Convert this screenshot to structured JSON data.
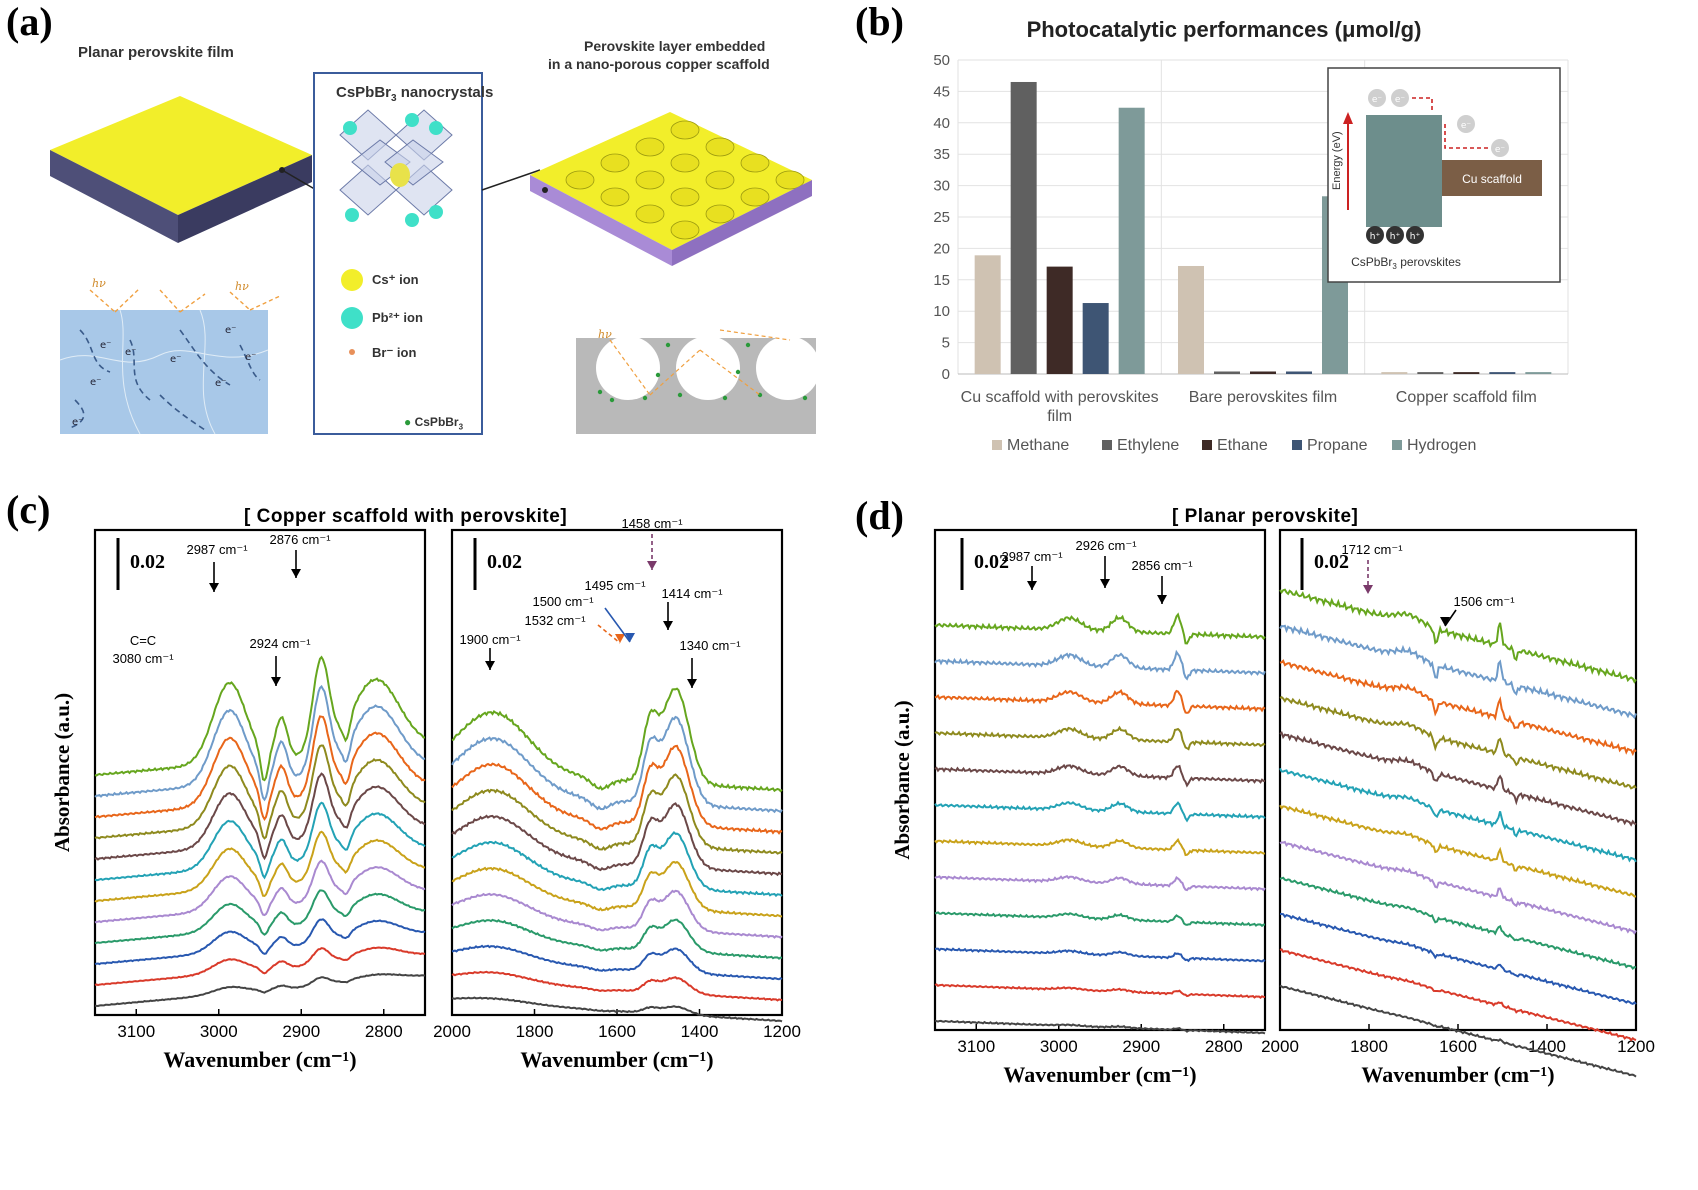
{
  "panels": {
    "a": {
      "letter": "(a)",
      "planar_title": "Planar perovskite film",
      "embedded_title_line1": "Perovskite layer embedded",
      "embedded_title_line2": "in a nano-porous copper scaffold",
      "nano_title": "CsPbBr",
      "nano_title_sub": "3",
      "nano_title_suffix": " nanocrystals",
      "legend_cs": "Cs⁺ ion",
      "legend_pb": "Pb²⁺ ion",
      "legend_br": "Br⁻ ion",
      "legend_cspbbr3": "CsPbBr",
      "legend_cspbbr3_sub": "3",
      "hv": "hν",
      "electron": "e⁻",
      "colors": {
        "yellow": "#f2ee2a",
        "film_side": "#4e4f78",
        "blue_bg": "#a8c8e8",
        "cyan": "#3fe0c8",
        "purple": "#a98bd6",
        "grey": "#b9b9b9"
      }
    },
    "b": {
      "letter": "(b)",
      "inset_energy": "Energy (eV)",
      "inset_cu": "Cu scaffold",
      "inset_perovskite_prefix": "CsPbBr",
      "inset_perovskite_sub": "3",
      "inset_perovskite_suffix": " perovskites",
      "inset_e": "e⁻",
      "inset_h": "h⁺"
    },
    "c": {
      "letter": "(c)",
      "title": "[ Copper scaffold with perovskite]"
    },
    "d": {
      "letter": "(d)",
      "title": "[ Planar perovskite]"
    }
  },
  "chart_data": [
    {
      "type": "bar",
      "title": "Photocatalytic performances (μmol/g)",
      "categories": [
        "Cu scaffold with perovskites film",
        "Bare perovskites film",
        "Copper scaffold film"
      ],
      "category_lines": [
        [
          "Cu scaffold with perovskites",
          "film"
        ],
        [
          "Bare perovskites film"
        ],
        [
          "Copper scaffold film"
        ]
      ],
      "series": [
        {
          "name": "Methane",
          "color": "#cfc2b2",
          "values": [
            18.9,
            17.2,
            0.3
          ]
        },
        {
          "name": "Ethylene",
          "color": "#606060",
          "values": [
            46.5,
            0.4,
            0.3
          ]
        },
        {
          "name": "Ethane",
          "color": "#3e2a26",
          "values": [
            17.1,
            0.4,
            0.3
          ]
        },
        {
          "name": "Propane",
          "color": "#3e5574",
          "values": [
            11.3,
            0.4,
            0.3
          ]
        },
        {
          "name": "Hydrogen",
          "color": "#7e9a99",
          "values": [
            42.4,
            28.3,
            0.3
          ]
        }
      ],
      "ylim": [
        0,
        50
      ],
      "yticks": [
        "0",
        "5",
        "10",
        "15",
        "20",
        "25",
        "30",
        "35",
        "40",
        "45",
        "50"
      ],
      "grid": true,
      "legend": "bottom"
    },
    {
      "type": "line",
      "panel": "c-left",
      "xlabel": "Wavenumber (cm⁻¹)",
      "ylabel": "Absorbance (a.u.)",
      "xlim": [
        3150,
        2750
      ],
      "xticks": [
        "3100",
        "3000",
        "2900",
        "2800"
      ],
      "scale_bar": "0.02",
      "annotations": [
        "C=C",
        "3080 cm⁻¹",
        "2987 cm⁻¹",
        "2924 cm⁻¹",
        "2876 cm⁻¹"
      ],
      "series_count": 12
    },
    {
      "type": "line",
      "panel": "c-right",
      "xlabel": "Wavenumber (cm⁻¹)",
      "ylabel": "",
      "xlim": [
        2000,
        1200
      ],
      "xticks": [
        "2000",
        "1800",
        "1600",
        "1400",
        "1200"
      ],
      "scale_bar": "0.02",
      "annotations": [
        "1900 cm⁻¹",
        "1532 cm⁻¹",
        "1500 cm⁻¹",
        "1495 cm⁻¹",
        "1458 cm⁻¹",
        "1414 cm⁻¹",
        "1340 cm⁻¹"
      ],
      "series_count": 12
    },
    {
      "type": "line",
      "panel": "d-left",
      "xlabel": "Wavenumber (cm⁻¹)",
      "ylabel": "Absorbance (a.u.)",
      "xlim": [
        3150,
        2750
      ],
      "xticks": [
        "3100",
        "3000",
        "2900",
        "2800"
      ],
      "scale_bar": "0.02",
      "annotations": [
        "2987 cm⁻¹",
        "2926 cm⁻¹",
        "2856 cm⁻¹"
      ],
      "series_count": 12
    },
    {
      "type": "line",
      "panel": "d-right",
      "xlabel": "Wavenumber (cm⁻¹)",
      "ylabel": "",
      "xlim": [
        2000,
        1200
      ],
      "xticks": [
        "2000",
        "1800",
        "1600",
        "1400",
        "1200"
      ],
      "scale_bar": "0.02",
      "annotations": [
        "1712 cm⁻¹",
        "1506 cm⁻¹"
      ],
      "series_count": 12
    }
  ],
  "spectra_colors": [
    "#66a61e",
    "#6f9bc9",
    "#e8661a",
    "#8e8a1e",
    "#6b4848",
    "#23a2b5",
    "#c9a21a",
    "#a989d0",
    "#2a9a6a",
    "#2858b0",
    "#d93a2a",
    "#444444"
  ]
}
